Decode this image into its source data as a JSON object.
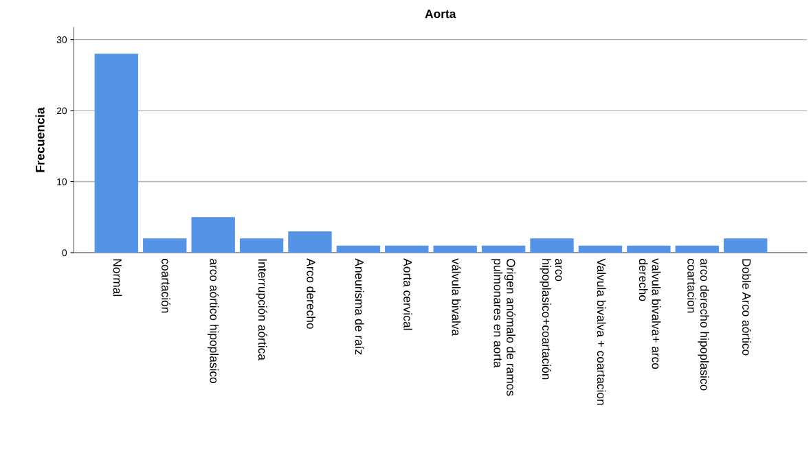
{
  "chart_data": {
    "type": "bar",
    "title": "Aorta",
    "ylabel": "Frecuencia",
    "categories": [
      "Normal",
      "coartación",
      "arco aórtico hipoplasico",
      "Interrupción aórtica",
      "Arco derecho",
      "Aneurisma de raíz",
      "Aorta cervical",
      "válvula bivalva",
      "Origen anómalo de ramos\npulmonares en aorta",
      "arco\nhipoplasico+coartación",
      "Valvula bivalva + coartacion",
      "valvula bivalva+ arco\nderecho",
      "arco derecho hipoplasico\ncoartacion",
      "Doble Arco aórtico"
    ],
    "values": [
      28,
      2,
      5,
      2,
      3,
      1,
      1,
      1,
      1,
      2,
      1,
      1,
      1,
      2
    ],
    "color": "#5593e6",
    "ylim": [
      0,
      31.7
    ],
    "yticks": [
      0,
      10,
      20,
      30
    ],
    "grid": "y",
    "legend": false
  }
}
